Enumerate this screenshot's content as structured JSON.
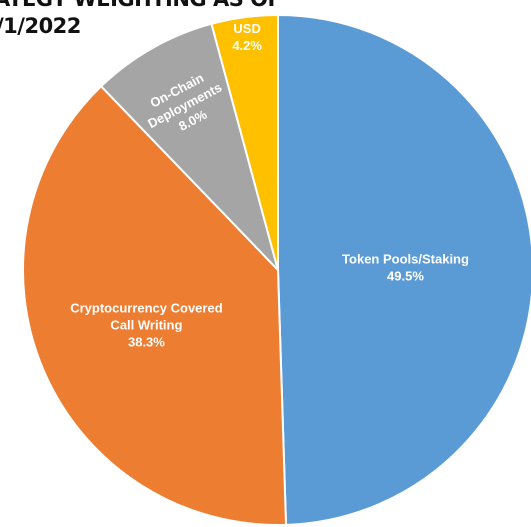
{
  "chart_data": {
    "type": "pie",
    "title": [
      "ATEGY WEIGHTING AS OF",
      "/1/2022"
    ],
    "categories": [
      "Token Pools/Staking",
      "Cryptocurrency Covered Call Writing",
      "On-Chain Deployments",
      "USD"
    ],
    "values": [
      49.5,
      38.3,
      8.0,
      4.2
    ],
    "value_labels": [
      "49.5%",
      "38.3%",
      "8.0%",
      "4.2%"
    ],
    "colors": [
      "#5b9bd5",
      "#ed7d31",
      "#a5a5a5",
      "#ffc000"
    ]
  }
}
